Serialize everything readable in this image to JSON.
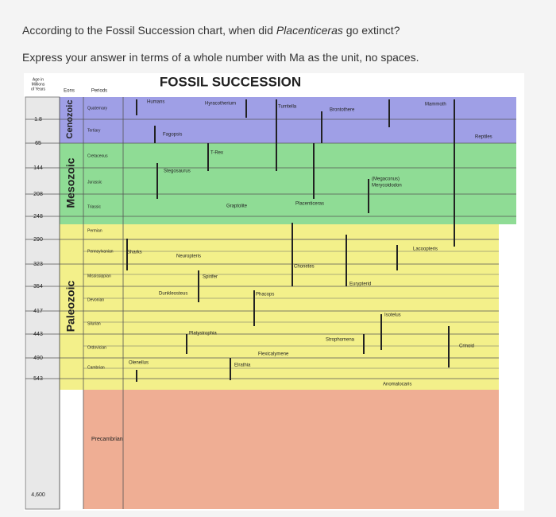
{
  "question": {
    "line1_before": "According to the Fossil Succession chart, when did ",
    "line1_italic": "Placenticeras",
    "line1_after": " go extinct?",
    "line2": "Express your answer in terms of a whole number with Ma as the unit, no spaces."
  },
  "chart": {
    "title": "FOSSIL SUCCESSION",
    "age_header": [
      "Age in",
      "Millions",
      "of Years"
    ],
    "eons_header": "Eons",
    "periods_header": "Periods",
    "ages": [
      "1.8",
      "65",
      "144",
      "208",
      "248",
      "290",
      "323",
      "354",
      "417",
      "443",
      "490",
      "543",
      "4,600"
    ],
    "eons": [
      "Cenozoic",
      "Mesozoic",
      "Paleozoic"
    ],
    "periods": [
      "Quaternary",
      "Tertiary",
      "Cretaceous",
      "Jurassic",
      "Triassic",
      "Permian",
      "Pennsylvanian",
      "Mississippian",
      "Devonian",
      "Silurian",
      "Ordovician",
      "Cambrian",
      "Precambrian"
    ],
    "fossils": [
      "Humans",
      "Hyracotherium",
      "Turritella",
      "Brontothere",
      "Mammoth",
      "Reptiles",
      "Fagopsis",
      "T-Rex",
      "Stegosaurus",
      "Graptolite",
      "Placenticeras",
      "(Megaconus)",
      "Merycoidodon",
      "Sharks",
      "Neuropteris",
      "Lacoopteris",
      "Chonetes",
      "Spirifer",
      "Eurypterid",
      "Dunkleosteus",
      "Phacops",
      "Isotelus",
      "Platystrophia",
      "Strophomena",
      "Crinoid",
      "Olenellus",
      "Flexicalymene",
      "Elrathia",
      "Anomalocaris"
    ]
  }
}
